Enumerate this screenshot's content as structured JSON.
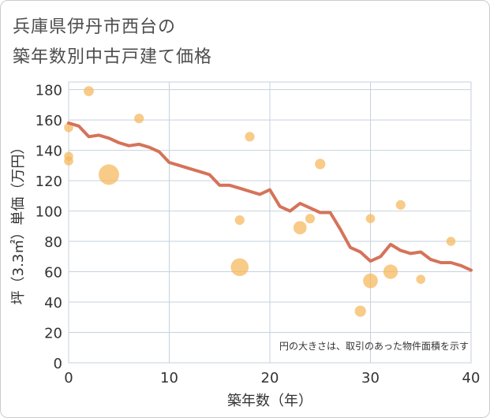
{
  "title_line1": "兵庫県伊丹市西台の",
  "title_line2": "築年数別中古戸建て価格",
  "chart_data": {
    "type": "scatter",
    "xlabel": "築年数（年）",
    "ylabel": "坪（3.3㎡）単価（万円）",
    "xlim": [
      0,
      40
    ],
    "ylim": [
      0,
      185
    ],
    "xticks": [
      0,
      10,
      20,
      30,
      40
    ],
    "yticks": [
      0,
      20,
      40,
      60,
      80,
      100,
      120,
      140,
      160,
      180
    ],
    "grid": true,
    "annotation": "円の大きさは、取引のあった物件面積を示す",
    "colors": {
      "bubble": "#f5b75a",
      "line": "#d5735a",
      "grid": "#c6d2dc",
      "axis_text": "#333333"
    },
    "bubbles": [
      {
        "x": 0,
        "y": 155,
        "size": 1
      },
      {
        "x": 0,
        "y": 136,
        "size": 1
      },
      {
        "x": 0,
        "y": 133,
        "size": 1
      },
      {
        "x": 2,
        "y": 179,
        "size": 1.2
      },
      {
        "x": 4,
        "y": 124,
        "size": 5
      },
      {
        "x": 7,
        "y": 161,
        "size": 1.1
      },
      {
        "x": 17,
        "y": 94,
        "size": 1.1
      },
      {
        "x": 17,
        "y": 63,
        "size": 3.8
      },
      {
        "x": 18,
        "y": 149,
        "size": 1.1
      },
      {
        "x": 23,
        "y": 89,
        "size": 2.1
      },
      {
        "x": 24,
        "y": 95,
        "size": 1.1
      },
      {
        "x": 25,
        "y": 131,
        "size": 1.3
      },
      {
        "x": 29,
        "y": 34,
        "size": 1.5
      },
      {
        "x": 30,
        "y": 95,
        "size": 1
      },
      {
        "x": 30,
        "y": 54,
        "size": 2.6
      },
      {
        "x": 32,
        "y": 60,
        "size": 2.5
      },
      {
        "x": 33,
        "y": 104,
        "size": 1.1
      },
      {
        "x": 35,
        "y": 55,
        "size": 1
      },
      {
        "x": 38,
        "y": 80,
        "size": 1
      }
    ],
    "trend": {
      "x": [
        0,
        1,
        2,
        3,
        4,
        5,
        6,
        7,
        8,
        9,
        10,
        11,
        12,
        13,
        14,
        15,
        16,
        17,
        18,
        19,
        20,
        21,
        22,
        23,
        24,
        25,
        26,
        27,
        28,
        29,
        30,
        31,
        32,
        33,
        34,
        35,
        36,
        37,
        38,
        39,
        40
      ],
      "y": [
        158,
        156,
        149,
        150,
        148,
        145,
        143,
        144,
        142,
        139,
        132,
        130,
        128,
        126,
        124,
        117,
        117,
        115,
        113,
        111,
        114,
        103,
        100,
        105,
        102,
        99,
        99,
        88,
        76,
        73,
        67,
        70,
        78,
        74,
        72,
        73,
        68,
        66,
        66,
        64,
        61
      ]
    }
  }
}
